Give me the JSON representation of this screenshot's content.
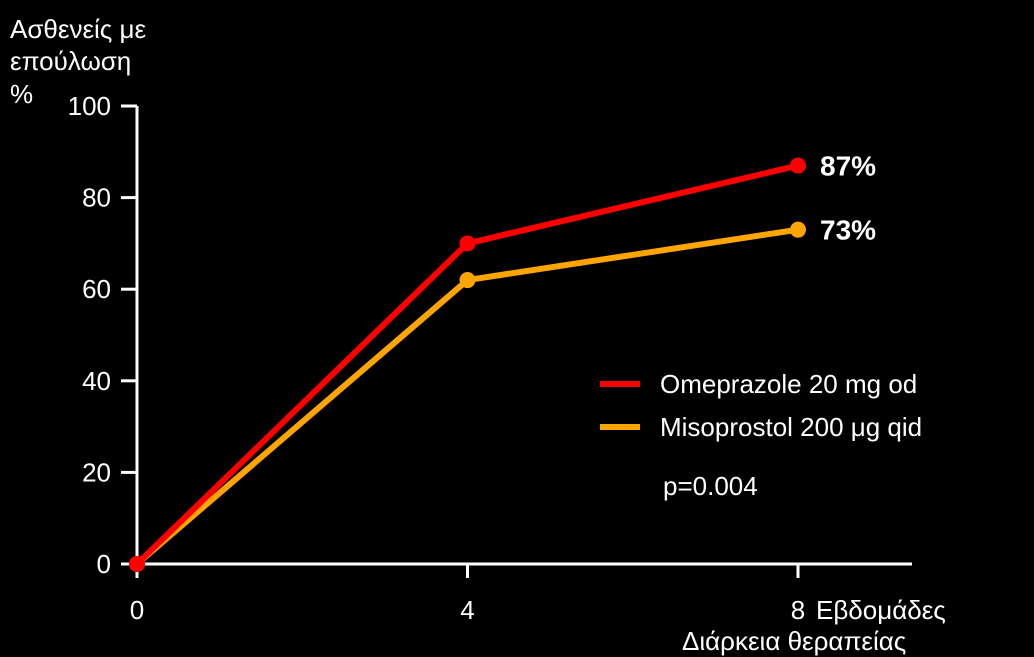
{
  "chart_data": {
    "type": "line",
    "ylabel_lines": [
      "Ασθενείς με",
      "επούλωση",
      "%"
    ],
    "xlabel_lines": [
      "Εβδομάδες",
      "Διάρκεια θεραπείας"
    ],
    "x": [
      0,
      4,
      8
    ],
    "xticks": [
      "0",
      "4",
      "8"
    ],
    "yticks": [
      "0",
      "20",
      "40",
      "60",
      "80",
      "100"
    ],
    "ylim": [
      0,
      100
    ],
    "xlim": [
      0,
      8
    ],
    "grid": false,
    "legend_position": "right",
    "series": [
      {
        "name": "Omeprazole 20 mg od",
        "values": [
          0,
          70,
          87
        ],
        "color": "#ff0000",
        "end_label": "87%"
      },
      {
        "name": "Misoprostol 200 μg qid",
        "values": [
          0,
          62,
          73
        ],
        "color": "#ffa500",
        "end_label": "73%"
      }
    ],
    "annotation": "p=0.004"
  }
}
